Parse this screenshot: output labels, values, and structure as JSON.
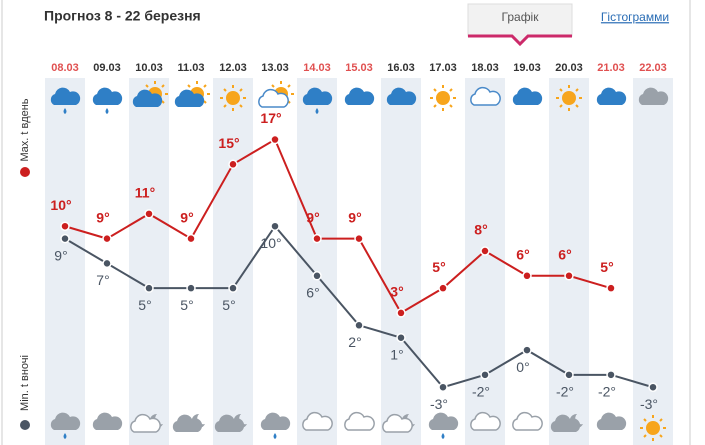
{
  "header": {
    "title": "Прогноз 8 - 22 березня",
    "tabs": [
      "Графік",
      "Гістограмми"
    ]
  },
  "chart_data": {
    "type": "line",
    "categories": [
      "08.03",
      "09.03",
      "10.03",
      "11.03",
      "12.03",
      "13.03",
      "14.03",
      "15.03",
      "16.03",
      "17.03",
      "18.03",
      "19.03",
      "20.03",
      "21.03",
      "22.03"
    ],
    "category_colors": [
      "#e05050",
      "#333333",
      "#333333",
      "#333333",
      "#333333",
      "#333333",
      "#e05050",
      "#e05050",
      "#333333",
      "#333333",
      "#333333",
      "#333333",
      "#333333",
      "#e05050",
      "#e05050"
    ],
    "series": [
      {
        "name": "Max. t вдень",
        "color": "#cc1f1f",
        "values": [
          10,
          9,
          11,
          9,
          15,
          17,
          9,
          9,
          3,
          5,
          8,
          6,
          6,
          5,
          null
        ],
        "value_labels": [
          "10°",
          "9°",
          "11°",
          "9°",
          "15°",
          "17°",
          "9°",
          "9°",
          "3°",
          "5°",
          "8°",
          "6°",
          "6°",
          "5°",
          null
        ]
      },
      {
        "name": "Min. t вночі",
        "color": "#4a5563",
        "values": [
          9,
          7,
          5,
          5,
          5,
          10,
          6,
          2,
          1,
          -3,
          -2,
          0,
          -2,
          -2,
          -3
        ],
        "value_labels": [
          "9°",
          "7°",
          "5°",
          "5°",
          "5°",
          "10°",
          "6°",
          "2°",
          "1°",
          "-3°",
          "-2°",
          "0°",
          "-2°",
          "-2°",
          "-3°"
        ]
      }
    ],
    "ylim": [
      -5,
      21
    ]
  }
}
